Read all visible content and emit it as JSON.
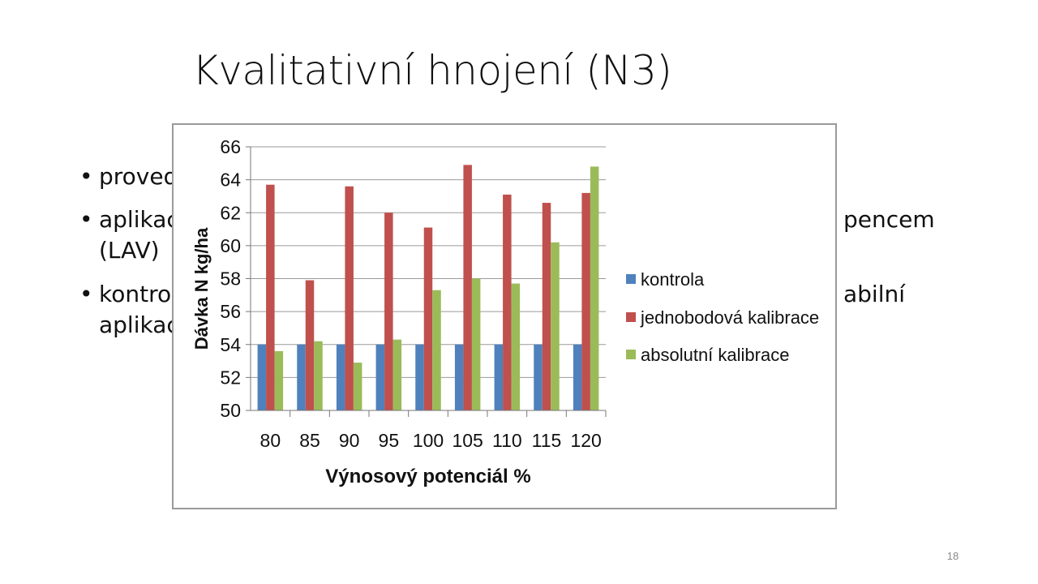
{
  "slide": {
    "title": "Kvalitativní hnojení (N3)",
    "page_number": "18",
    "bullets": [
      {
        "visible_start": "proved",
        "visible_end": ""
      },
      {
        "visible_start": "aplikac",
        "visible_end": "pencem",
        "second_line": "(LAV)"
      },
      {
        "visible_start": "kontro",
        "visible_end": "abilní",
        "second_line": "aplikac"
      }
    ]
  },
  "colors": {
    "kontrola": "#4f81bd",
    "jednobodova": "#c0504d",
    "absolutni": "#9bbb59",
    "grid": "#9a9a9a"
  },
  "chart_data": {
    "type": "bar",
    "title": "",
    "xlabel": "Výnosový potenciál %",
    "ylabel": "Dávka N kg/ha",
    "ylim": [
      50,
      66
    ],
    "y_ticks": [
      "50",
      "52",
      "54",
      "56",
      "58",
      "60",
      "62",
      "64",
      "66"
    ],
    "grid": "horizontal",
    "legend_position": "right",
    "categories": [
      "80",
      "85",
      "90",
      "95",
      "100",
      "105",
      "110",
      "115",
      "120"
    ],
    "series": [
      {
        "name": "kontrola",
        "values": [
          54,
          54,
          54,
          54,
          54,
          54,
          54,
          54,
          54
        ]
      },
      {
        "name": "jednobodová kalibrace",
        "values": [
          63.7,
          57.9,
          63.6,
          62.0,
          61.1,
          64.9,
          63.1,
          62.6,
          63.2
        ]
      },
      {
        "name": "absolutní kalibrace",
        "values": [
          53.6,
          54.2,
          52.9,
          54.3,
          57.3,
          58.0,
          57.7,
          60.2,
          64.8
        ]
      }
    ]
  }
}
